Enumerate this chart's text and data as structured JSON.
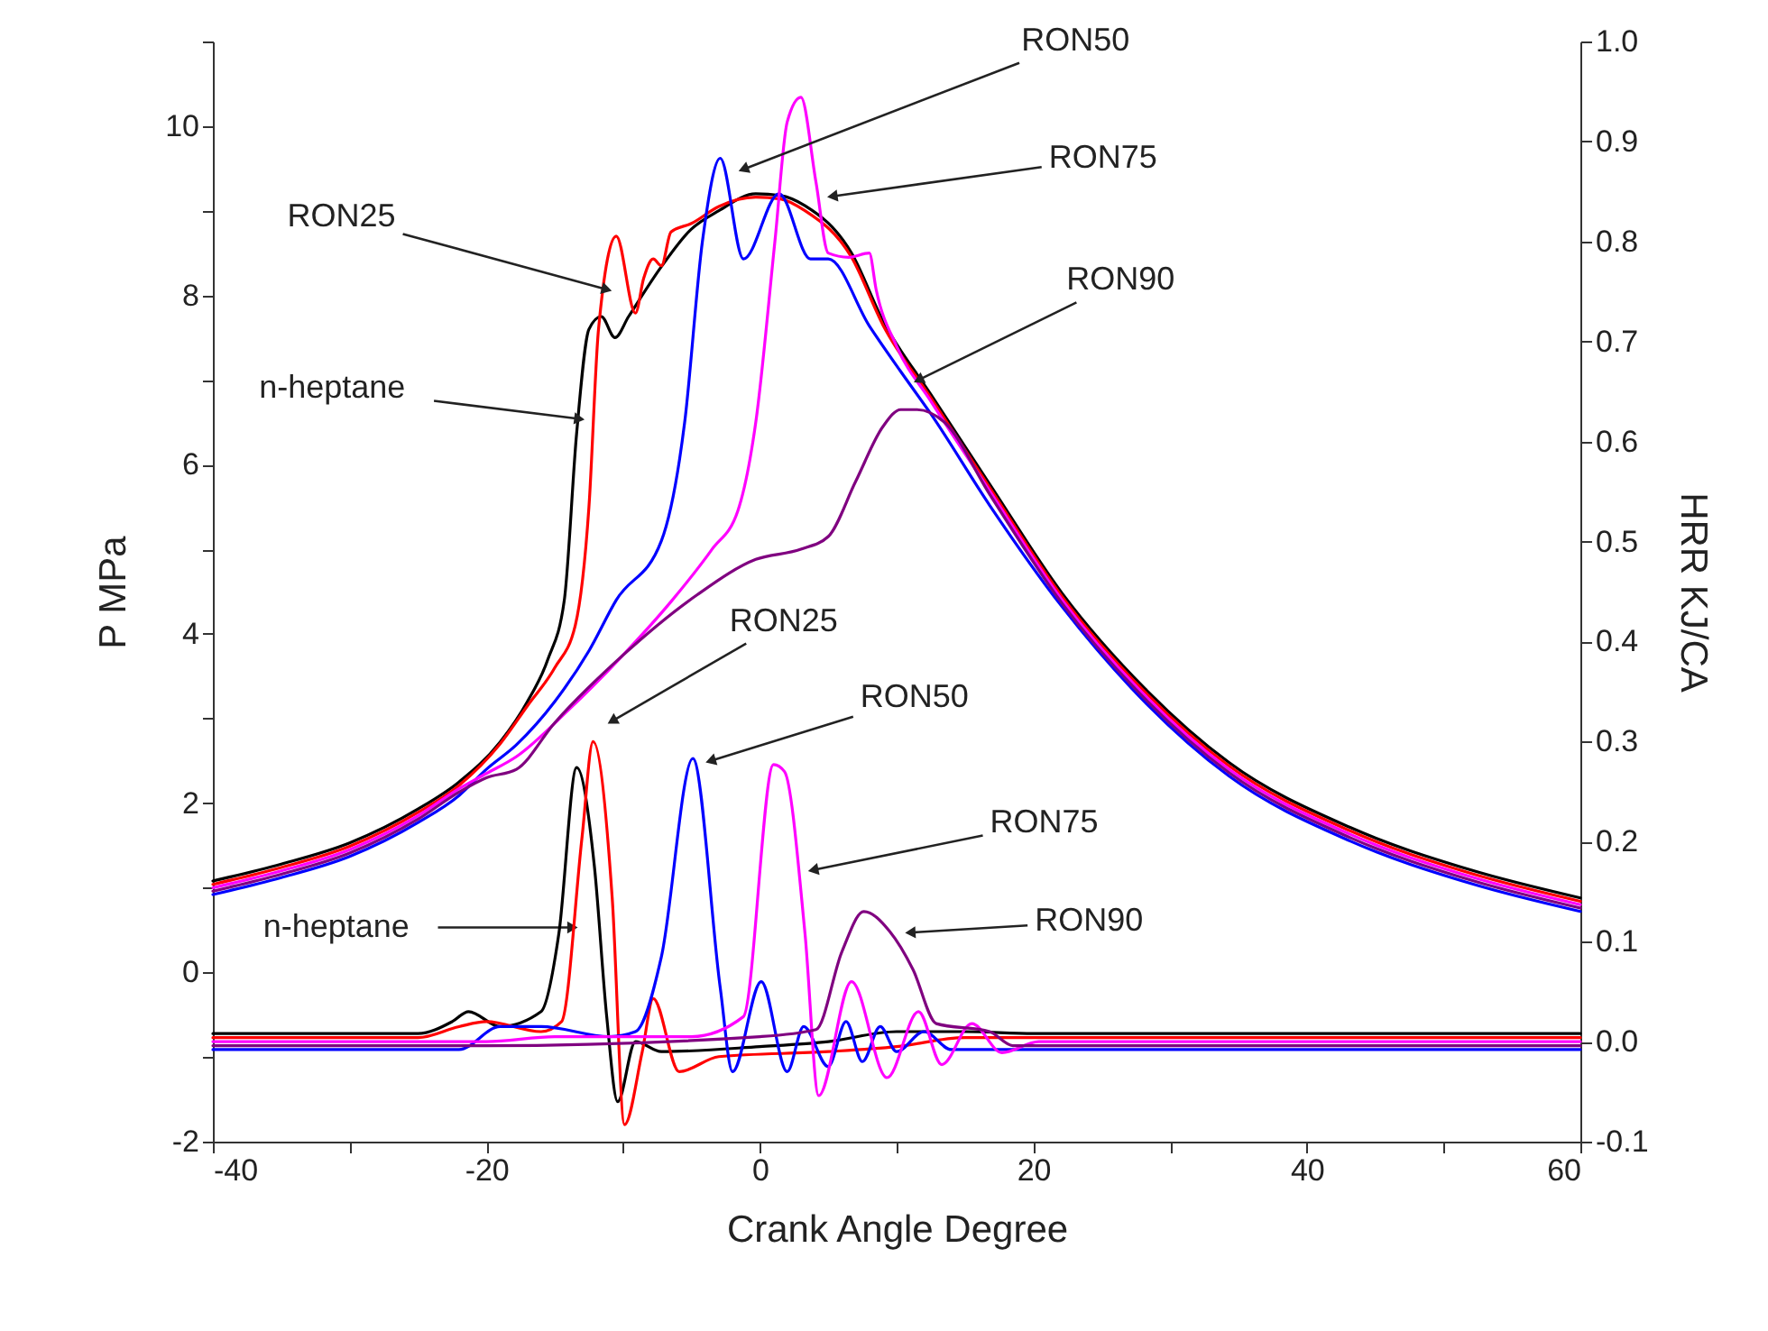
{
  "chart_data": {
    "type": "line",
    "xlabel": "Crank Angle Degree",
    "ylabel": "P MPa",
    "y2label": "HRR KJ/CA",
    "xlim": [
      -40,
      60
    ],
    "xticks": [
      -40,
      {
        "value": -30,
        "label": null
      },
      -20,
      {
        "value": -10,
        "label": null
      },
      0,
      {
        "value": 10,
        "label": null
      },
      20,
      {
        "value": 30,
        "label": null
      },
      40,
      {
        "value": 50,
        "label": null
      },
      60
    ],
    "ylim": [
      -2,
      11
    ],
    "yticks": [
      -2,
      {
        "value": -1,
        "label": null
      },
      0,
      {
        "value": 1,
        "label": null
      },
      2,
      {
        "value": 3,
        "label": null
      },
      4,
      {
        "value": 5,
        "label": null
      },
      6,
      {
        "value": 7,
        "label": null
      },
      8,
      {
        "value": 9,
        "label": null
      },
      10,
      {
        "value": 11,
        "label": null
      }
    ],
    "y2lim": [
      -0.1,
      1.0
    ],
    "y2ticks": [
      -0.1,
      {
        "value": 0,
        "label": "0.0"
      },
      0.1,
      0.2,
      0.3,
      0.4,
      0.5,
      0.6,
      0.7,
      0.8,
      0.9,
      {
        "value": 1,
        "label": "1.0"
      }
    ],
    "series": [
      {
        "color": "#000000",
        "x": [
          -40,
          -35,
          -30,
          -25,
          -22,
          -19,
          -17,
          -15.5,
          -14.3,
          -13.4,
          -12.5,
          -11.6,
          -10.6,
          -9.6,
          -7.2,
          -5.1,
          -3,
          -0.3,
          1.5,
          3.3,
          6.7,
          9,
          12.5,
          16.8,
          22.1,
          28.3,
          34.3,
          43.2,
          52,
          60
        ],
        "values": [
          1.08,
          1.28,
          1.53,
          1.93,
          2.25,
          2.72,
          3.2,
          3.7,
          4.4,
          6.37,
          7.6,
          7.75,
          7.5,
          7.75,
          8.34,
          8.77,
          9.0,
          9.2,
          9.18,
          9.06,
          8.5,
          7.7,
          6.83,
          5.77,
          4.48,
          3.33,
          2.48,
          1.71,
          1.21,
          0.88
        ]
      },
      {
        "color": "#ff0000",
        "x": [
          -40,
          -35,
          -30,
          -25,
          -22,
          -19,
          -17,
          -15,
          -13.5,
          -12.5,
          -11.8,
          -10.5,
          -9.1,
          -8.5,
          -7.8,
          -7.2,
          -6.5,
          -5,
          -3,
          -0.3,
          1.5,
          3.3,
          6.7,
          9,
          12.5,
          16.8,
          22.1,
          28.3,
          34.3,
          43.2,
          52,
          60
        ],
        "values": [
          1.04,
          1.24,
          1.49,
          1.89,
          2.21,
          2.7,
          3.15,
          3.6,
          4.1,
          5.5,
          7.6,
          8.7,
          7.79,
          8.2,
          8.43,
          8.35,
          8.75,
          8.85,
          9.05,
          9.16,
          9.14,
          9.0,
          8.45,
          7.65,
          6.79,
          5.73,
          4.44,
          3.29,
          2.44,
          1.67,
          1.17,
          0.84
        ]
      },
      {
        "color": "#0000ff",
        "x": [
          -40,
          -35,
          -30,
          -25,
          -22,
          -20,
          -17.8,
          -15,
          -12.5,
          -10.5,
          -7.2,
          -5.5,
          -4.2,
          -2.9,
          -1.2,
          1.4,
          3.7,
          5,
          8,
          10.3,
          12.5,
          16.8,
          22.1,
          28.3,
          34.3,
          43.2,
          52,
          60
        ],
        "values": [
          0.92,
          1.12,
          1.37,
          1.77,
          2.09,
          2.4,
          2.69,
          3.2,
          3.8,
          4.4,
          5.1,
          6.5,
          8.64,
          9.62,
          8.43,
          9.2,
          8.43,
          8.43,
          7.64,
          7.1,
          6.6,
          5.52,
          4.32,
          3.17,
          2.32,
          1.55,
          1.05,
          0.72
        ]
      },
      {
        "color": "#ff00ff",
        "x": [
          -40,
          -35,
          -30,
          -25,
          -22,
          -20,
          -17.8,
          -14,
          -10,
          -6.4,
          -3.5,
          -1.6,
          -0.3,
          1.1,
          2,
          3,
          4.1,
          5,
          6.5,
          8,
          8.5,
          10,
          12.5,
          16.8,
          22.1,
          28.3,
          34.3,
          43.2,
          52,
          60
        ],
        "values": [
          1.0,
          1.2,
          1.45,
          1.85,
          2.17,
          2.35,
          2.55,
          3.1,
          3.75,
          4.4,
          5.0,
          5.46,
          6.5,
          8.64,
          10.05,
          10.34,
          9.34,
          8.5,
          8.45,
          8.5,
          8.07,
          7.4,
          6.75,
          5.69,
          4.4,
          3.25,
          2.4,
          1.63,
          1.13,
          0.8
        ]
      },
      {
        "color": "#800080",
        "x": [
          -40,
          -35,
          -30,
          -25,
          -22,
          -20,
          -17.8,
          -15,
          -10,
          -4.6,
          -0.3,
          3,
          5,
          7,
          9,
          10.3,
          11.5,
          13.5,
          16.8,
          22.1,
          28.3,
          34.3,
          43.2,
          52,
          60
        ],
        "values": [
          0.96,
          1.16,
          1.41,
          1.81,
          2.13,
          2.3,
          2.4,
          2.95,
          3.75,
          4.46,
          4.88,
          5.0,
          5.15,
          5.8,
          6.45,
          6.65,
          6.65,
          6.5,
          5.65,
          4.36,
          3.21,
          2.36,
          1.59,
          1.09,
          0.76
        ]
      },
      {
        "color": "#000000",
        "axis": "y2",
        "x": [
          -40,
          -25,
          -22.5,
          -21.3,
          -19,
          -16,
          -14.7,
          -13.4,
          -12.1,
          -11.2,
          -10.4,
          -9.1,
          -7.2,
          0,
          5,
          10,
          15,
          20,
          60
        ],
        "values": [
          0.008,
          0.008,
          0.02,
          0.03,
          0.015,
          0.03,
          0.108,
          0.274,
          0.175,
          0.025,
          -0.06,
          0.0,
          -0.01,
          -0.005,
          0.0,
          0.01,
          0.01,
          0.008,
          0.008
        ]
      },
      {
        "color": "#ff0000",
        "axis": "y2",
        "x": [
          -40,
          -25,
          -22,
          -20,
          -16,
          -14.5,
          -13,
          -12.2,
          -10.8,
          -9.9,
          -8.6,
          -7.8,
          -5.9,
          -3,
          5,
          10,
          15,
          60
        ],
        "values": [
          0.004,
          0.004,
          0.015,
          0.02,
          0.01,
          0.02,
          0.205,
          0.3,
          0.144,
          -0.083,
          -0.01,
          0.043,
          -0.03,
          -0.015,
          -0.01,
          -0.005,
          0.004,
          0.004
        ]
      },
      {
        "color": "#0000ff",
        "axis": "y2",
        "x": [
          -40,
          -22,
          -19,
          -16,
          -11,
          -9.1,
          -7.2,
          -4.9,
          -2.9,
          -2,
          0.1,
          2,
          3.2,
          5,
          6.3,
          7.5,
          8.8,
          10,
          12,
          14,
          60
        ],
        "values": [
          -0.008,
          -0.008,
          0.015,
          0.015,
          0.005,
          0.01,
          0.085,
          0.283,
          0.054,
          -0.03,
          0.06,
          -0.03,
          0.015,
          -0.025,
          0.02,
          -0.02,
          0.015,
          -0.01,
          0.01,
          -0.008,
          -0.008
        ]
      },
      {
        "color": "#ff00ff",
        "axis": "y2",
        "x": [
          -40,
          -20,
          -15,
          -5,
          -1.2,
          1,
          1.8,
          3.3,
          4.3,
          6.7,
          9.3,
          11.6,
          13.3,
          15.5,
          17.7,
          20.4,
          60
        ],
        "values": [
          0,
          0,
          0.005,
          0.005,
          0.025,
          0.277,
          0.27,
          0.108,
          -0.054,
          0.06,
          -0.036,
          0.03,
          -0.023,
          0.018,
          -0.011,
          0,
          0
        ]
      },
      {
        "color": "#800080",
        "axis": "y2",
        "x": [
          -40,
          -20,
          0,
          4.1,
          6,
          7.6,
          9.5,
          11.2,
          12.9,
          16.8,
          18.5,
          60
        ],
        "values": [
          -0.004,
          -0.004,
          0.005,
          0.012,
          0.09,
          0.13,
          0.11,
          0.072,
          0.018,
          0.01,
          -0.004,
          -0.004
        ]
      }
    ],
    "annotations": [
      {
        "text": "RON50",
        "x": -1.2,
        "y": 9.49
      },
      {
        "text": "RON75",
        "x": 5.3,
        "y": 9.17
      },
      {
        "text": "RON90",
        "x": 11.6,
        "y": 7.0
      },
      {
        "text": "RON25",
        "x": -11.2,
        "y": 8.07
      },
      {
        "text": "n-heptane",
        "x": -13.2,
        "y": 6.54
      },
      {
        "text": "RON25",
        "x": -10.8,
        "y": 2.97
      },
      {
        "text": "RON50",
        "x": -3.6,
        "y": 2.5
      },
      {
        "text": "RON75",
        "x": 3.9,
        "y": 1.21
      },
      {
        "text": "RON90",
        "x": 11,
        "y": 0.47
      },
      {
        "text": "n-heptane",
        "x": -13.7,
        "y": 0.53
      }
    ]
  }
}
